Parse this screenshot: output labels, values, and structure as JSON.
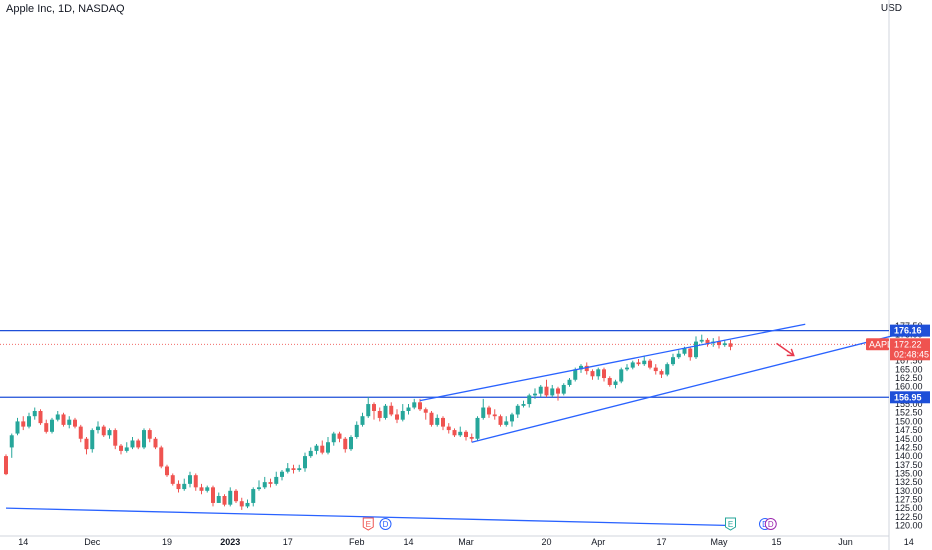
{
  "header": {
    "title": "Apple Inc, 1D, NASDAQ",
    "currency": "USD"
  },
  "colors": {
    "up": "#26a69a",
    "down": "#ef5350",
    "trendline": "#2962ff",
    "level_line": "#1e4fd8",
    "arrow": "#e8394d",
    "axis_text": "#131722"
  },
  "chart_data": {
    "type": "candlestick",
    "symbol": "AAPL",
    "interval": "1D",
    "exchange": "NASDAQ",
    "ylim": [
      119.5,
      179.5
    ],
    "y_ticks": [
      "120.00",
      "122.50",
      "125.00",
      "127.50",
      "130.00",
      "132.50",
      "135.00",
      "137.50",
      "140.00",
      "142.50",
      "145.00",
      "147.50",
      "150.00",
      "152.50",
      "155.00",
      "157.50",
      "160.00",
      "162.50",
      "165.00",
      "167.50",
      "170.00",
      "172.50",
      "175.00",
      "177.50"
    ],
    "x_labels": [
      {
        "label": "14",
        "bar": 3,
        "bold": false
      },
      {
        "label": "Dec",
        "bar": 15,
        "bold": false
      },
      {
        "label": "19",
        "bar": 28,
        "bold": false
      },
      {
        "label": "2023",
        "bar": 39,
        "bold": true
      },
      {
        "label": "17",
        "bar": 49,
        "bold": false
      },
      {
        "label": "Feb",
        "bar": 61,
        "bold": false
      },
      {
        "label": "14",
        "bar": 70,
        "bold": false
      },
      {
        "label": "Mar",
        "bar": 80,
        "bold": false
      },
      {
        "label": "20",
        "bar": 94,
        "bold": false
      },
      {
        "label": "Apr",
        "bar": 103,
        "bold": false
      },
      {
        "label": "17",
        "bar": 114,
        "bold": false
      },
      {
        "label": "May",
        "bar": 124,
        "bold": false
      },
      {
        "label": "15",
        "bar": 134,
        "bold": false
      },
      {
        "label": "Jun",
        "bar": 146,
        "bold": false
      },
      {
        "label": "14",
        "bar": 157,
        "bold": false
      }
    ],
    "candles": [
      [
        140.0,
        134.8,
        140.5,
        134.5
      ],
      [
        142.5,
        146.0,
        146.5,
        139.5
      ],
      [
        146.5,
        150.0,
        151.0,
        146.0
      ],
      [
        150.0,
        148.5,
        151.5,
        147.5
      ],
      [
        148.5,
        151.5,
        152.5,
        148.0
      ],
      [
        151.5,
        153.0,
        154.0,
        150.5
      ],
      [
        153.0,
        149.5,
        153.5,
        149.0
      ],
      [
        149.5,
        147.0,
        150.5,
        146.5
      ],
      [
        147.0,
        150.5,
        151.0,
        146.5
      ],
      [
        150.5,
        152.0,
        153.0,
        150.0
      ],
      [
        152.0,
        149.0,
        152.5,
        148.5
      ],
      [
        149.0,
        150.5,
        151.5,
        148.0
      ],
      [
        150.5,
        148.5,
        151.0,
        148.0
      ],
      [
        148.5,
        145.0,
        149.0,
        144.0
      ],
      [
        145.0,
        142.0,
        145.5,
        140.5
      ],
      [
        142.0,
        147.5,
        148.0,
        141.0
      ],
      [
        147.5,
        148.5,
        150.0,
        146.5
      ],
      [
        148.5,
        146.0,
        149.0,
        145.5
      ],
      [
        146.0,
        147.5,
        148.0,
        145.0
      ],
      [
        147.5,
        143.0,
        148.0,
        142.0
      ],
      [
        143.0,
        141.5,
        143.5,
        140.5
      ],
      [
        141.5,
        142.5,
        144.0,
        141.0
      ],
      [
        142.5,
        144.5,
        145.5,
        142.0
      ],
      [
        144.5,
        142.5,
        145.0,
        142.0
      ],
      [
        142.5,
        147.5,
        148.0,
        142.0
      ],
      [
        147.5,
        145.0,
        148.0,
        144.0
      ],
      [
        145.0,
        142.5,
        145.5,
        142.0
      ],
      [
        142.5,
        137.0,
        143.0,
        136.5
      ],
      [
        137.0,
        134.5,
        137.5,
        134.0
      ],
      [
        134.5,
        132.0,
        135.0,
        131.5
      ],
      [
        132.0,
        130.5,
        133.0,
        129.5
      ],
      [
        130.5,
        132.0,
        133.5,
        130.0
      ],
      [
        132.0,
        134.5,
        135.5,
        131.0
      ],
      [
        134.5,
        131.0,
        135.0,
        130.0
      ],
      [
        131.0,
        130.0,
        132.0,
        129.0
      ],
      [
        130.0,
        131.0,
        131.5,
        129.5
      ],
      [
        131.0,
        126.5,
        131.5,
        125.5
      ],
      [
        126.5,
        128.5,
        129.5,
        126.5
      ],
      [
        128.5,
        126.0,
        129.0,
        125.5
      ],
      [
        126.0,
        130.0,
        131.0,
        125.5
      ],
      [
        130.0,
        127.0,
        130.5,
        126.5
      ],
      [
        127.0,
        125.5,
        128.0,
        124.5
      ],
      [
        125.5,
        126.5,
        127.5,
        125.0
      ],
      [
        126.5,
        130.5,
        131.0,
        125.5
      ],
      [
        130.5,
        131.0,
        133.0,
        130.0
      ],
      [
        131.0,
        132.5,
        134.0,
        130.5
      ],
      [
        132.5,
        132.0,
        133.5,
        131.0
      ],
      [
        132.0,
        134.0,
        135.5,
        131.5
      ],
      [
        134.0,
        135.5,
        136.0,
        133.0
      ],
      [
        135.5,
        136.5,
        138.0,
        135.0
      ],
      [
        136.5,
        136.0,
        137.5,
        135.0
      ],
      [
        136.0,
        136.5,
        137.5,
        135.5
      ],
      [
        136.5,
        140.0,
        141.0,
        135.5
      ],
      [
        140.0,
        141.5,
        142.5,
        139.5
      ],
      [
        141.5,
        143.0,
        143.5,
        140.5
      ],
      [
        143.0,
        141.0,
        144.5,
        140.5
      ],
      [
        141.0,
        144.0,
        145.5,
        140.5
      ],
      [
        144.0,
        146.5,
        147.0,
        143.0
      ],
      [
        146.5,
        145.0,
        147.0,
        144.0
      ],
      [
        145.0,
        142.0,
        145.5,
        141.0
      ],
      [
        142.0,
        145.5,
        146.0,
        141.5
      ],
      [
        145.5,
        149.0,
        150.0,
        145.0
      ],
      [
        149.0,
        151.5,
        152.5,
        148.5
      ],
      [
        151.5,
        155.0,
        157.0,
        151.0
      ],
      [
        155.0,
        153.0,
        155.5,
        150.5
      ],
      [
        153.0,
        151.0,
        154.0,
        150.0
      ],
      [
        151.0,
        154.5,
        155.0,
        150.5
      ],
      [
        154.5,
        152.0,
        155.5,
        151.5
      ],
      [
        152.0,
        150.5,
        153.5,
        149.5
      ],
      [
        150.5,
        153.0,
        155.0,
        150.0
      ],
      [
        153.0,
        154.0,
        155.0,
        152.0
      ],
      [
        154.0,
        155.5,
        156.5,
        153.5
      ],
      [
        155.5,
        153.5,
        156.5,
        153.0
      ],
      [
        153.5,
        152.5,
        154.0,
        150.5
      ],
      [
        152.5,
        149.0,
        153.0,
        148.5
      ],
      [
        149.0,
        151.0,
        152.0,
        148.5
      ],
      [
        151.0,
        148.5,
        151.5,
        147.5
      ],
      [
        148.5,
        147.5,
        149.5,
        146.5
      ],
      [
        147.5,
        146.0,
        148.0,
        145.5
      ],
      [
        146.0,
        147.0,
        148.5,
        145.5
      ],
      [
        147.0,
        145.5,
        147.5,
        144.5
      ],
      [
        145.5,
        145.0,
        146.5,
        144.0
      ],
      [
        145.0,
        151.0,
        151.5,
        144.5
      ],
      [
        151.0,
        154.0,
        156.5,
        150.5
      ],
      [
        154.0,
        152.0,
        154.5,
        151.0
      ],
      [
        152.0,
        151.5,
        153.5,
        150.5
      ],
      [
        151.5,
        149.0,
        152.0,
        148.5
      ],
      [
        149.0,
        150.0,
        151.5,
        148.5
      ],
      [
        150.0,
        152.0,
        152.5,
        148.5
      ],
      [
        152.0,
        154.5,
        155.0,
        151.0
      ],
      [
        154.5,
        155.0,
        156.0,
        154.0
      ],
      [
        155.0,
        157.5,
        158.0,
        154.0
      ],
      [
        157.5,
        158.0,
        159.5,
        156.5
      ],
      [
        158.0,
        160.0,
        160.5,
        157.0
      ],
      [
        160.0,
        157.5,
        162.0,
        157.0
      ],
      [
        157.5,
        159.5,
        160.5,
        157.0
      ],
      [
        159.5,
        158.0,
        160.0,
        156.0
      ],
      [
        158.0,
        160.5,
        161.0,
        157.5
      ],
      [
        160.5,
        162.0,
        162.5,
        160.0
      ],
      [
        162.0,
        165.0,
        165.5,
        161.5
      ],
      [
        165.0,
        166.0,
        166.5,
        164.0
      ],
      [
        166.0,
        164.5,
        167.0,
        163.5
      ],
      [
        164.5,
        163.0,
        165.0,
        162.0
      ],
      [
        163.0,
        165.0,
        165.5,
        162.0
      ],
      [
        165.0,
        162.5,
        165.5,
        161.5
      ],
      [
        162.5,
        160.5,
        163.0,
        160.0
      ],
      [
        160.5,
        161.5,
        162.0,
        159.5
      ],
      [
        161.5,
        165.0,
        165.5,
        161.0
      ],
      [
        165.0,
        165.5,
        166.5,
        164.5
      ],
      [
        165.5,
        167.0,
        167.5,
        165.0
      ],
      [
        167.0,
        166.5,
        168.0,
        166.0
      ],
      [
        166.5,
        167.5,
        169.0,
        166.0
      ],
      [
        167.5,
        165.5,
        168.0,
        165.0
      ],
      [
        165.5,
        164.5,
        166.5,
        163.5
      ],
      [
        164.5,
        163.5,
        165.0,
        162.5
      ],
      [
        163.5,
        166.5,
        167.0,
        163.0
      ],
      [
        166.5,
        168.5,
        169.5,
        166.0
      ],
      [
        168.5,
        169.5,
        170.5,
        168.0
      ],
      [
        169.5,
        171.0,
        171.5,
        169.0
      ],
      [
        171.0,
        168.5,
        171.5,
        167.5
      ],
      [
        168.5,
        173.0,
        174.5,
        168.0
      ],
      [
        173.0,
        173.5,
        175.0,
        172.5
      ],
      [
        173.5,
        172.5,
        174.0,
        171.5
      ],
      [
        172.5,
        173.0,
        174.0,
        171.5
      ],
      [
        173.0,
        172.0,
        174.5,
        171.0
      ],
      [
        172.0,
        172.5,
        173.5,
        171.5
      ],
      [
        172.5,
        171.5,
        173.5,
        170.5
      ]
    ],
    "levels": [
      {
        "value": 176.16,
        "label": "176.16"
      },
      {
        "value": 156.95,
        "label": "156.95"
      }
    ],
    "last_price": {
      "value": 172.22,
      "label": "172.22",
      "symbol": "AAPL",
      "countdown": "02:48:45"
    },
    "events": [
      {
        "bar": 63,
        "letter": "E",
        "color": "#ef5350"
      },
      {
        "bar": 66,
        "letter": "D",
        "color": "#2962ff"
      },
      {
        "bar": 126,
        "letter": "E",
        "color": "#26a69a"
      },
      {
        "bar": 132,
        "letter": "D",
        "color": "#2962ff"
      },
      {
        "bar": 133,
        "letter": "D",
        "color": "#9c27b0"
      }
    ],
    "trendlines": [
      {
        "name": "wedge-upper",
        "from": [
          72,
          156.0
        ],
        "to": [
          139,
          178.0
        ]
      },
      {
        "name": "wedge-lower",
        "from": [
          81,
          144.0
        ],
        "to": [
          155,
          175.0
        ]
      },
      {
        "name": "long-term-support",
        "from": [
          0,
          125.0
        ],
        "to": [
          126,
          120.0
        ]
      }
    ],
    "projection_arrow": {
      "from": [
        134,
        172.5
      ],
      "to": [
        137,
        169.0
      ]
    }
  }
}
